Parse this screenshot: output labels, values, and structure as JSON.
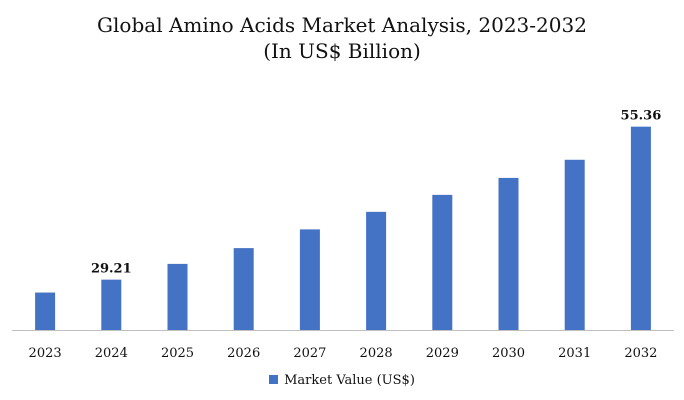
{
  "chart_data": {
    "type": "bar",
    "title": "Global Amino Acids Market Analysis, 2023-2032",
    "subtitle": "(In US$ Billion)",
    "xlabel": "",
    "ylabel": "",
    "categories": [
      "2023",
      "2024",
      "2025",
      "2026",
      "2027",
      "2028",
      "2029",
      "2030",
      "2031",
      "2032"
    ],
    "series": [
      {
        "name": "Market Value (US$)",
        "values": [
          27.0,
          29.21,
          31.9,
          34.6,
          37.8,
          40.8,
          43.7,
          46.6,
          49.7,
          55.36
        ]
      }
    ],
    "data_labels": [
      {
        "category": "2024",
        "text": "29.21"
      },
      {
        "category": "2032",
        "text": "55.36"
      }
    ],
    "ylim": [
      20.6,
      56.5
    ],
    "grid": false,
    "legend_position": "bottom-center",
    "colors": {
      "bar": "#4472C4",
      "axis": "#bfbfbf",
      "text": "#111111"
    }
  }
}
